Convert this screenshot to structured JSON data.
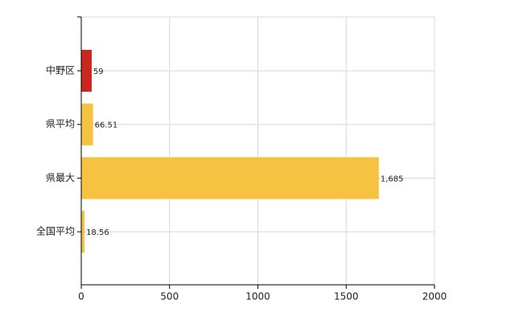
{
  "chart_data": {
    "type": "bar",
    "orientation": "horizontal",
    "categories": [
      "中野区",
      "県平均",
      "県最大",
      "全国平均"
    ],
    "values": [
      59,
      66.51,
      1685,
      18.56
    ],
    "value_labels": [
      "59",
      "66.51",
      "1,685",
      "18.56"
    ],
    "colors": [
      "#c8281e",
      "#f5c242",
      "#f5c242",
      "#f5c242"
    ],
    "xlim": [
      0,
      2000
    ],
    "xticks": [
      0,
      500,
      1000,
      1500,
      2000
    ],
    "grid": true
  }
}
